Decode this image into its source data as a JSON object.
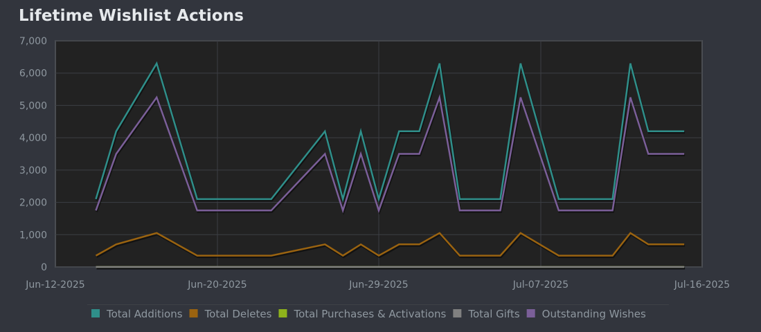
{
  "title": "Lifetime Wishlist Actions",
  "chart_data": {
    "type": "line",
    "title": "Lifetime Wishlist Actions",
    "xlabel": "",
    "ylabel": "",
    "xlim": [
      "2025-06-12",
      "2025-07-16"
    ],
    "ylim": [
      0,
      7000
    ],
    "yticks": [
      0,
      1000,
      2000,
      3000,
      4000,
      5000,
      6000,
      7000
    ],
    "ytick_labels": [
      "0",
      "1,000",
      "2,000",
      "3,000",
      "4,000",
      "5,000",
      "6,000",
      "7,000"
    ],
    "xticks": [
      "2025-06-12",
      "2025-06-20",
      "2025-06-29",
      "2025-07-07",
      "2025-07-16"
    ],
    "xtick_labels": [
      "Jun-12-2025",
      "Jun-20-2025",
      "Jun-29-2025",
      "Jul-07-2025",
      "Jul-16-2025"
    ],
    "grid": true,
    "legend_position": "bottom",
    "x": [
      "2025-06-14",
      "2025-06-15",
      "2025-06-17",
      "2025-06-19",
      "2025-06-23",
      "2025-06-26",
      "2025-06-27",
      "2025-06-28",
      "2025-06-29",
      "2025-06-30",
      "2025-07-01",
      "2025-07-02",
      "2025-07-03",
      "2025-07-05",
      "2025-07-06",
      "2025-07-08",
      "2025-07-11",
      "2025-07-12",
      "2025-07-13",
      "2025-07-15"
    ],
    "series": [
      {
        "name": "Total Additions",
        "color": "#2f8f8a",
        "values": [
          2100,
          4200,
          6300,
          2100,
          2100,
          4200,
          2100,
          4200,
          2100,
          4200,
          4200,
          6300,
          2100,
          2100,
          6300,
          2100,
          2100,
          6300,
          4200,
          4200
        ]
      },
      {
        "name": "Total Deletes",
        "color": "#9a6310",
        "values": [
          350,
          700,
          1050,
          350,
          350,
          700,
          350,
          700,
          350,
          700,
          700,
          1050,
          350,
          350,
          1050,
          350,
          350,
          1050,
          700,
          700
        ]
      },
      {
        "name": "Total Purchases & Activations",
        "color": "#8eb21c",
        "values": [
          0,
          0,
          0,
          0,
          0,
          0,
          0,
          0,
          0,
          0,
          0,
          0,
          0,
          0,
          0,
          0,
          0,
          0,
          0,
          0
        ]
      },
      {
        "name": "Total Gifts",
        "color": "#808080",
        "values": [
          0,
          0,
          0,
          0,
          0,
          0,
          0,
          0,
          0,
          0,
          0,
          0,
          0,
          0,
          0,
          0,
          0,
          0,
          0,
          0
        ]
      },
      {
        "name": "Outstanding Wishes",
        "color": "#7b5f99",
        "values": [
          1750,
          3500,
          5250,
          1750,
          1750,
          3500,
          1750,
          3500,
          1750,
          3500,
          3500,
          5250,
          1750,
          1750,
          5250,
          1750,
          1750,
          5250,
          3500,
          3500
        ]
      }
    ]
  }
}
